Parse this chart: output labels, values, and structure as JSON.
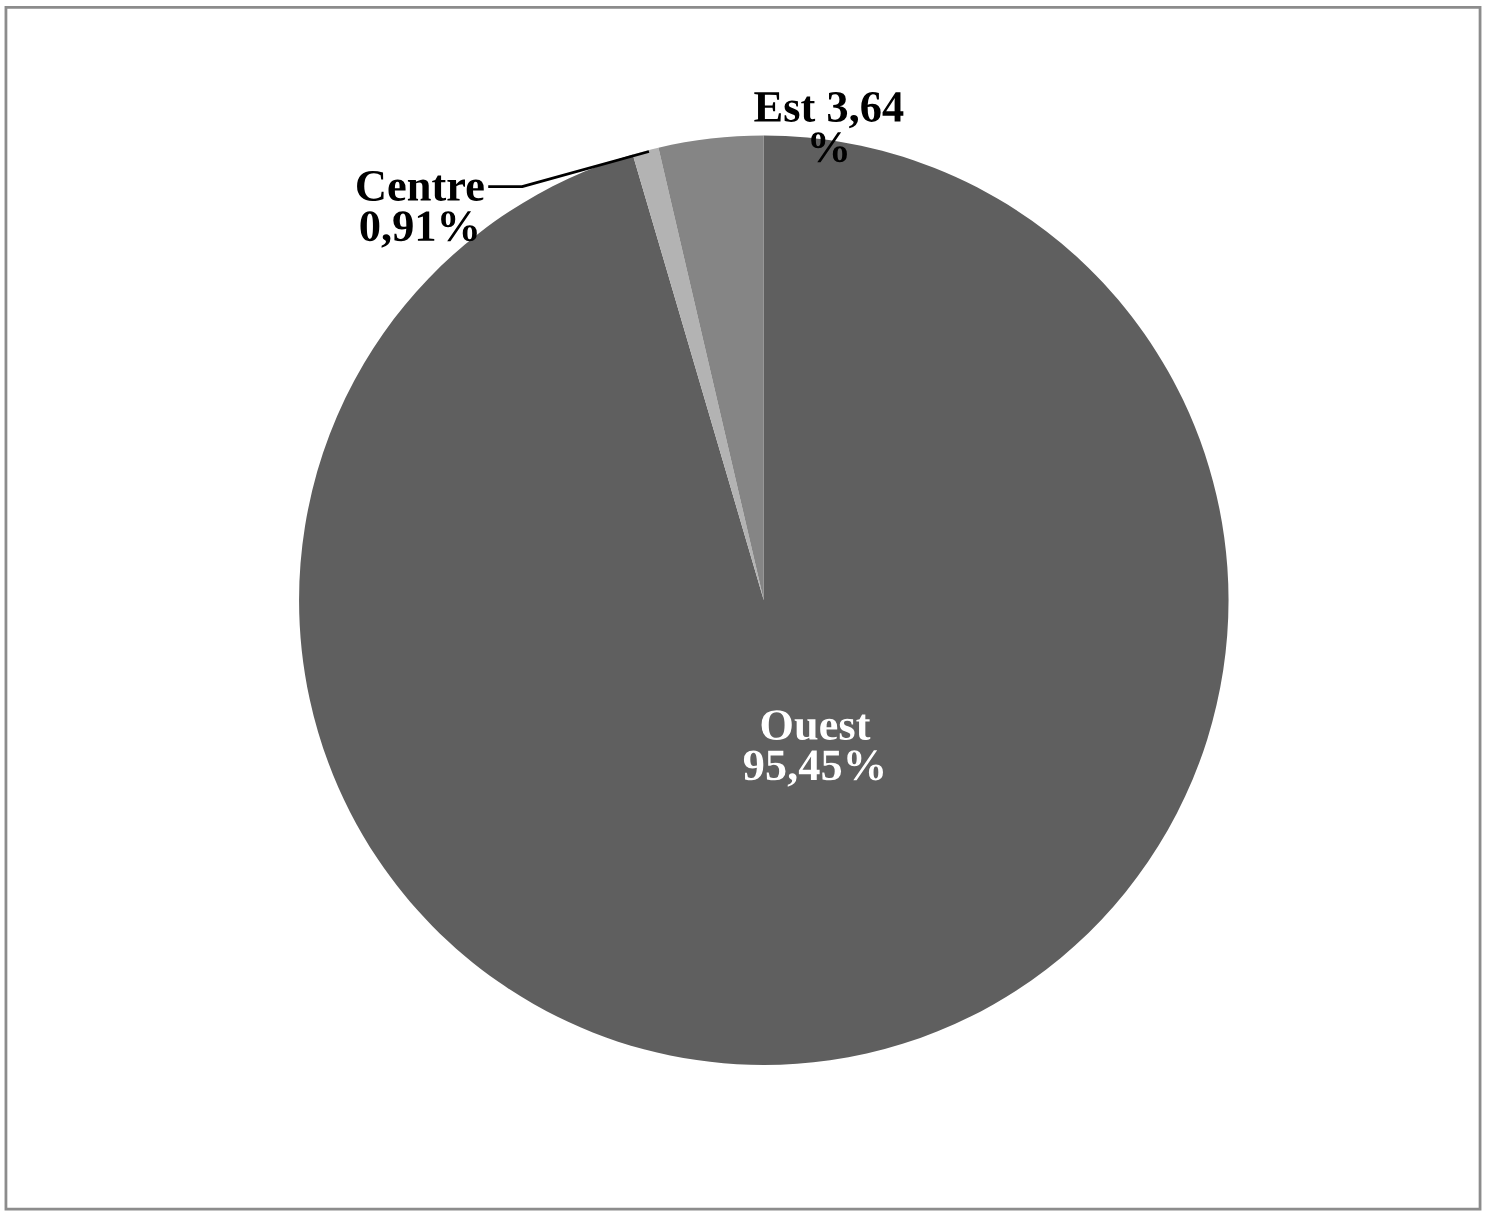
{
  "chart_data": {
    "type": "pie",
    "categories": [
      "Ouest",
      "Centre",
      "Est"
    ],
    "values": [
      95.45,
      0.91,
      3.64
    ],
    "colors": [
      "#5f5f5f",
      "#b3b3b3",
      "#858585"
    ],
    "value_labels": [
      "95,45%",
      "0,91%",
      "3,64\n%"
    ]
  }
}
